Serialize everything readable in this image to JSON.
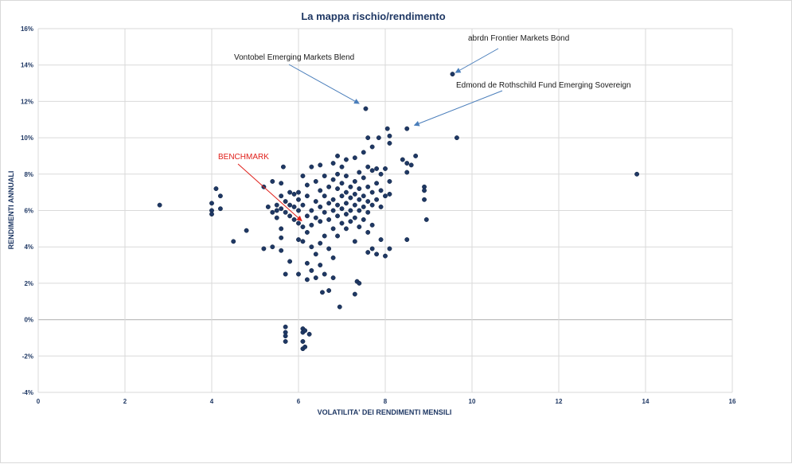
{
  "chart_data": {
    "type": "scatter",
    "title": "La mappa rischio/rendimento",
    "xlabel": "VOLATILITA' DEI RENDIMENTI MENSILI",
    "ylabel": "RENDIMENTI ANNUALI",
    "xlim": [
      0,
      16
    ],
    "ylim": [
      -4,
      16
    ],
    "x_ticks": [
      0,
      2,
      4,
      6,
      8,
      10,
      12,
      14,
      16
    ],
    "x_tick_labels": [
      "0",
      "2",
      "4",
      "6",
      "8",
      "10",
      "12",
      "14",
      "16"
    ],
    "y_ticks": [
      -4,
      -2,
      0,
      2,
      4,
      6,
      8,
      10,
      12,
      14,
      16
    ],
    "y_tick_labels": [
      "-4%",
      "-2%",
      "0%",
      "2%",
      "4%",
      "6%",
      "8%",
      "10%",
      "12%",
      "14%",
      "16%"
    ],
    "grid": true,
    "marker_color": "#1f3864",
    "annotations": [
      {
        "text": "abrdn Frontier Markets Bond",
        "point": [
          9.55,
          13.5
        ],
        "color": "#1a1a1a",
        "arrow_color": "#4a7ebb"
      },
      {
        "text": "Vontobel Emerging Markets Blend",
        "point": [
          7.45,
          11.8
        ],
        "color": "#1a1a1a",
        "arrow_color": "#4a7ebb"
      },
      {
        "text": "Edmond de Rothschild Fund Emerging Sovereign",
        "point": [
          8.6,
          10.6
        ],
        "color": "#1a1a1a",
        "arrow_color": "#4a7ebb"
      },
      {
        "text": "BENCHMARK",
        "point": [
          6.0,
          5.3
        ],
        "color": "#e0201b",
        "arrow_color": "#e0201b"
      }
    ],
    "points": [
      [
        2.8,
        6.3
      ],
      [
        4.0,
        6.4
      ],
      [
        4.0,
        6.0
      ],
      [
        4.0,
        5.8
      ],
      [
        4.1,
        7.2
      ],
      [
        4.2,
        6.8
      ],
      [
        4.2,
        6.1
      ],
      [
        4.5,
        4.3
      ],
      [
        4.8,
        4.9
      ],
      [
        5.2,
        7.3
      ],
      [
        5.2,
        3.9
      ],
      [
        5.3,
        6.2
      ],
      [
        5.4,
        7.6
      ],
      [
        5.4,
        5.9
      ],
      [
        5.4,
        4.0
      ],
      [
        5.5,
        6.3
      ],
      [
        5.5,
        6.0
      ],
      [
        5.5,
        5.6
      ],
      [
        5.6,
        7.5
      ],
      [
        5.6,
        6.8
      ],
      [
        5.6,
        6.1
      ],
      [
        5.6,
        5.0
      ],
      [
        5.6,
        4.5
      ],
      [
        5.6,
        3.8
      ],
      [
        5.65,
        8.4
      ],
      [
        5.7,
        6.5
      ],
      [
        5.7,
        5.9
      ],
      [
        5.7,
        2.5
      ],
      [
        5.7,
        -0.4
      ],
      [
        5.7,
        -0.7
      ],
      [
        5.7,
        -0.9
      ],
      [
        5.7,
        -1.2
      ],
      [
        5.8,
        7.0
      ],
      [
        5.8,
        6.3
      ],
      [
        5.8,
        5.7
      ],
      [
        5.8,
        3.2
      ],
      [
        5.9,
        6.9
      ],
      [
        5.9,
        6.2
      ],
      [
        5.9,
        5.5
      ],
      [
        6.0,
        7.0
      ],
      [
        6.0,
        6.6
      ],
      [
        6.0,
        6.0
      ],
      [
        6.0,
        4.4
      ],
      [
        6.0,
        2.5
      ],
      [
        6.1,
        7.9
      ],
      [
        6.1,
        6.3
      ],
      [
        6.1,
        5.1
      ],
      [
        6.1,
        4.3
      ],
      [
        6.1,
        -0.5
      ],
      [
        6.1,
        -0.7
      ],
      [
        6.1,
        -1.2
      ],
      [
        6.1,
        -1.6
      ],
      [
        6.15,
        -0.6
      ],
      [
        6.15,
        -1.5
      ],
      [
        6.2,
        7.4
      ],
      [
        6.2,
        6.8
      ],
      [
        6.2,
        5.7
      ],
      [
        6.2,
        4.8
      ],
      [
        6.2,
        3.1
      ],
      [
        6.2,
        2.2
      ],
      [
        6.25,
        -0.8
      ],
      [
        6.3,
        8.4
      ],
      [
        6.3,
        6.0
      ],
      [
        6.3,
        5.2
      ],
      [
        6.3,
        4.0
      ],
      [
        6.3,
        2.7
      ],
      [
        6.4,
        7.6
      ],
      [
        6.4,
        6.5
      ],
      [
        6.4,
        5.6
      ],
      [
        6.4,
        3.6
      ],
      [
        6.4,
        2.3
      ],
      [
        6.5,
        8.5
      ],
      [
        6.5,
        7.1
      ],
      [
        6.5,
        6.2
      ],
      [
        6.5,
        5.4
      ],
      [
        6.5,
        4.2
      ],
      [
        6.5,
        3.0
      ],
      [
        6.55,
        1.5
      ],
      [
        6.6,
        7.9
      ],
      [
        6.6,
        6.8
      ],
      [
        6.6,
        5.9
      ],
      [
        6.6,
        4.6
      ],
      [
        6.6,
        2.5
      ],
      [
        6.7,
        7.3
      ],
      [
        6.7,
        6.4
      ],
      [
        6.7,
        5.5
      ],
      [
        6.7,
        3.9
      ],
      [
        6.7,
        1.6
      ],
      [
        6.8,
        8.6
      ],
      [
        6.8,
        7.7
      ],
      [
        6.8,
        6.6
      ],
      [
        6.8,
        6.0
      ],
      [
        6.8,
        5.0
      ],
      [
        6.8,
        3.4
      ],
      [
        6.8,
        2.3
      ],
      [
        6.9,
        9.0
      ],
      [
        6.9,
        8.0
      ],
      [
        6.9,
        7.2
      ],
      [
        6.9,
        6.3
      ],
      [
        6.9,
        5.7
      ],
      [
        6.9,
        4.6
      ],
      [
        6.95,
        0.7
      ],
      [
        7.0,
        8.4
      ],
      [
        7.0,
        7.5
      ],
      [
        7.0,
        6.8
      ],
      [
        7.0,
        6.1
      ],
      [
        7.0,
        5.3
      ],
      [
        7.1,
        8.8
      ],
      [
        7.1,
        7.9
      ],
      [
        7.1,
        7.0
      ],
      [
        7.1,
        6.4
      ],
      [
        7.1,
        5.8
      ],
      [
        7.1,
        5.0
      ],
      [
        7.2,
        7.3
      ],
      [
        7.2,
        6.7
      ],
      [
        7.2,
        6.0
      ],
      [
        7.2,
        5.4
      ],
      [
        7.3,
        8.9
      ],
      [
        7.3,
        7.6
      ],
      [
        7.3,
        6.9
      ],
      [
        7.3,
        6.3
      ],
      [
        7.3,
        5.6
      ],
      [
        7.3,
        4.3
      ],
      [
        7.3,
        1.4
      ],
      [
        7.35,
        2.1
      ],
      [
        7.4,
        8.1
      ],
      [
        7.4,
        7.2
      ],
      [
        7.4,
        6.6
      ],
      [
        7.4,
        6.0
      ],
      [
        7.4,
        5.1
      ],
      [
        7.4,
        2.0
      ],
      [
        7.5,
        9.2
      ],
      [
        7.5,
        7.8
      ],
      [
        7.5,
        6.8
      ],
      [
        7.5,
        6.2
      ],
      [
        7.5,
        5.5
      ],
      [
        7.55,
        11.6
      ],
      [
        7.6,
        10.0
      ],
      [
        7.6,
        8.4
      ],
      [
        7.6,
        7.3
      ],
      [
        7.6,
        6.5
      ],
      [
        7.6,
        5.9
      ],
      [
        7.6,
        4.8
      ],
      [
        7.6,
        3.7
      ],
      [
        7.7,
        9.5
      ],
      [
        7.7,
        8.2
      ],
      [
        7.7,
        7.0
      ],
      [
        7.7,
        6.3
      ],
      [
        7.7,
        5.2
      ],
      [
        7.7,
        3.9
      ],
      [
        7.8,
        8.3
      ],
      [
        7.8,
        7.5
      ],
      [
        7.8,
        6.6
      ],
      [
        7.8,
        3.6
      ],
      [
        7.85,
        10.0
      ],
      [
        7.9,
        8.0
      ],
      [
        7.9,
        7.1
      ],
      [
        7.9,
        6.2
      ],
      [
        7.9,
        4.4
      ],
      [
        8.0,
        8.3
      ],
      [
        8.0,
        6.8
      ],
      [
        8.0,
        3.5
      ],
      [
        8.05,
        10.5
      ],
      [
        8.1,
        10.1
      ],
      [
        8.1,
        9.7
      ],
      [
        8.1,
        7.6
      ],
      [
        8.1,
        6.9
      ],
      [
        8.1,
        3.9
      ],
      [
        8.4,
        8.8
      ],
      [
        8.5,
        10.5
      ],
      [
        8.5,
        8.6
      ],
      [
        8.5,
        8.1
      ],
      [
        8.5,
        4.4
      ],
      [
        8.6,
        8.5
      ],
      [
        8.7,
        9.0
      ],
      [
        8.9,
        7.3
      ],
      [
        8.9,
        7.1
      ],
      [
        8.9,
        6.6
      ],
      [
        8.95,
        5.5
      ],
      [
        9.55,
        13.5
      ],
      [
        9.65,
        10.0
      ],
      [
        13.8,
        8.0
      ],
      [
        6.0,
        5.3
      ]
    ]
  }
}
